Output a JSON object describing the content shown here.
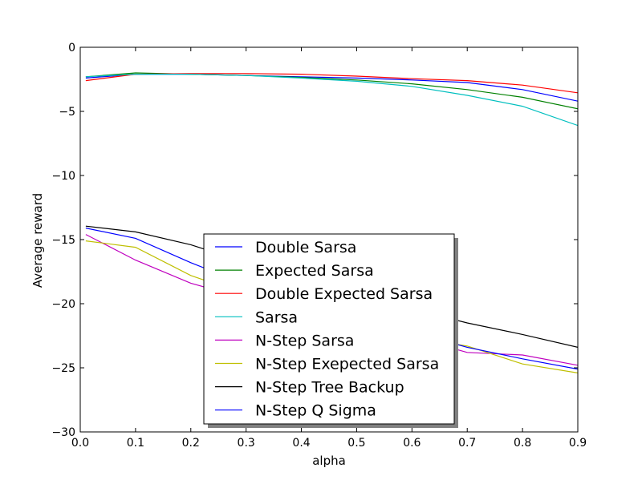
{
  "chart_data": {
    "type": "line",
    "title": "",
    "xlabel": "alpha",
    "ylabel": "Average reward",
    "xlim": [
      0.0,
      0.9
    ],
    "ylim": [
      -30,
      0
    ],
    "x_ticks": [
      0.0,
      0.1,
      0.2,
      0.3,
      0.4,
      0.5,
      0.6,
      0.7,
      0.8,
      0.9
    ],
    "x_tick_labels": [
      "0.0",
      "0.1",
      "0.2",
      "0.3",
      "0.4",
      "0.5",
      "0.6",
      "0.7",
      "0.8",
      "0.9"
    ],
    "y_ticks": [
      0,
      -5,
      -10,
      -15,
      -20,
      -25,
      -30
    ],
    "y_tick_labels": [
      "0",
      "−5",
      "−10",
      "−15",
      "−20",
      "−25",
      "−30"
    ],
    "grid": false,
    "legend_position": "lower-center",
    "x": [
      0.01,
      0.1,
      0.2,
      0.3,
      0.4,
      0.5,
      0.6,
      0.7,
      0.8,
      0.9
    ],
    "series": [
      {
        "name": "Double Sarsa",
        "color": "#0000ff",
        "values": [
          -2.4,
          -2.1,
          -2.1,
          -2.2,
          -2.3,
          -2.4,
          -2.55,
          -2.75,
          -3.3,
          -4.2
        ]
      },
      {
        "name": "Expected Sarsa",
        "color": "#008000",
        "values": [
          -2.3,
          -2.0,
          -2.1,
          -2.2,
          -2.35,
          -2.55,
          -2.85,
          -3.3,
          -3.9,
          -4.8
        ]
      },
      {
        "name": "Double Expected Sarsa",
        "color": "#ff0000",
        "values": [
          -2.6,
          -2.1,
          -2.05,
          -2.05,
          -2.1,
          -2.25,
          -2.45,
          -2.6,
          -2.95,
          -3.55
        ]
      },
      {
        "name": "Sarsa",
        "color": "#00bfbf",
        "values": [
          -2.3,
          -2.1,
          -2.1,
          -2.2,
          -2.4,
          -2.65,
          -3.05,
          -3.75,
          -4.6,
          -6.1
        ]
      },
      {
        "name": "N-Step Sarsa",
        "color": "#bf00bf",
        "values": [
          -14.6,
          -16.6,
          -18.4,
          -19.6,
          -20.6,
          -21.6,
          -22.6,
          -23.8,
          -24.0,
          -24.8
        ]
      },
      {
        "name": "N-Step Exepected Sarsa",
        "color": "#bfbf00",
        "values": [
          -15.1,
          -15.6,
          -17.8,
          -19.3,
          -20.6,
          -21.6,
          -22.6,
          -23.3,
          -24.7,
          -25.4
        ]
      },
      {
        "name": "N-Step Tree Backup",
        "color": "#000000",
        "values": [
          -13.95,
          -14.4,
          -15.4,
          -16.8,
          -18.2,
          -19.3,
          -20.4,
          -21.5,
          -22.4,
          -23.4
        ]
      },
      {
        "name": "N-Step Q Sigma",
        "color": "#0000ff",
        "values": [
          -14.1,
          -14.9,
          -16.8,
          -18.5,
          -19.8,
          -21.0,
          -22.2,
          -23.4,
          -24.3,
          -25.1
        ]
      }
    ]
  }
}
